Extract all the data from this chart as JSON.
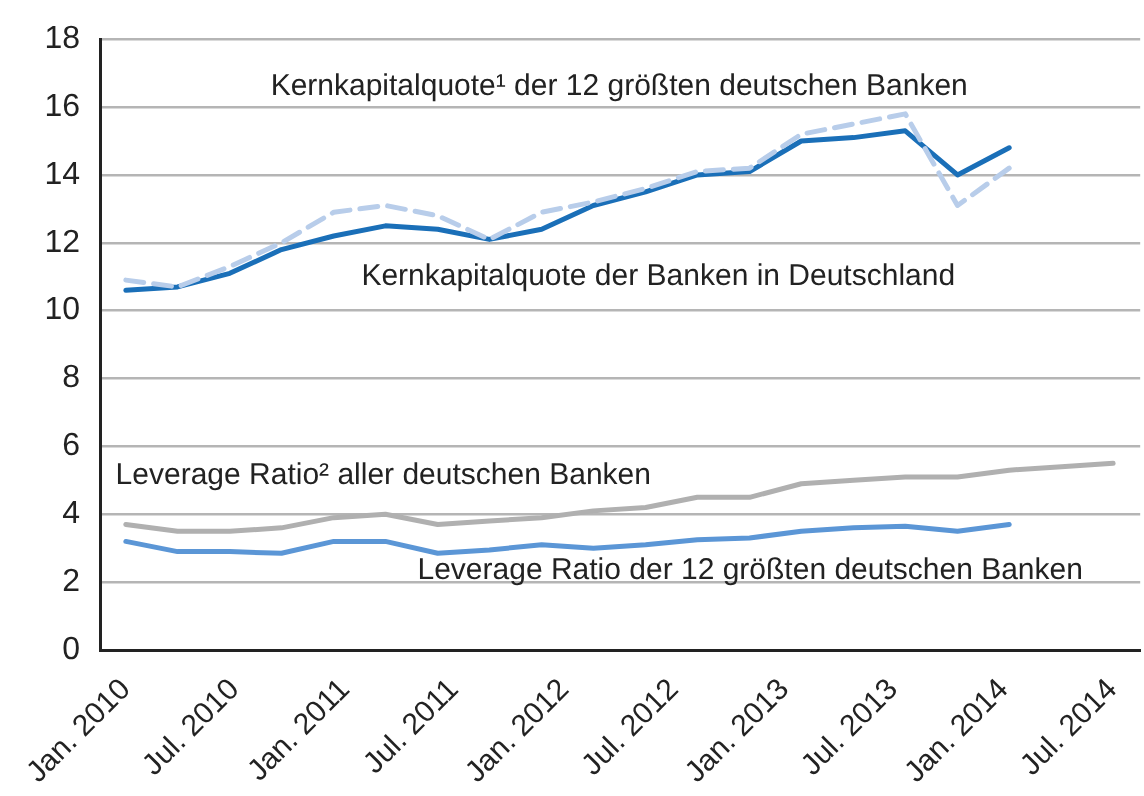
{
  "chart_data": {
    "type": "line",
    "xlim": [
      "2009-11-19",
      "2014-08-16"
    ],
    "xticks": [
      {
        "value": "2010-01",
        "label": "Jan. 2010"
      },
      {
        "value": "2010-07",
        "label": "Jul. 2010"
      },
      {
        "value": "2011-01",
        "label": "Jan. 2011"
      },
      {
        "value": "2011-07",
        "label": "Jul. 2011"
      },
      {
        "value": "2012-01",
        "label": "Jan. 2012"
      },
      {
        "value": "2012-07",
        "label": "Jul. 2012"
      },
      {
        "value": "2013-01",
        "label": "Jan. 2013"
      },
      {
        "value": "2013-07",
        "label": "Jul. 2013"
      },
      {
        "value": "2014-01",
        "label": "Jan. 2014"
      },
      {
        "value": "2014-07",
        "label": "Jul. 2014"
      }
    ],
    "ylim": [
      0,
      18
    ],
    "yticks": [
      0,
      2,
      4,
      6,
      8,
      10,
      12,
      14,
      16,
      18
    ],
    "grid": "y",
    "legend": false,
    "marker": "none",
    "x": [
      "2010-01-01",
      "2010-03-28",
      "2010-06-23",
      "2010-09-17",
      "2010-12-13",
      "2011-03-09",
      "2011-06-04",
      "2011-08-29",
      "2011-11-24",
      "2012-02-18",
      "2012-05-15",
      "2012-08-09",
      "2012-11-04",
      "2013-01-29",
      "2013-04-26",
      "2013-07-21",
      "2013-10-16",
      "2014-01-10",
      "2014-04-07",
      "2014-07-02"
    ],
    "series": [
      {
        "name": "Kernkapitalquote¹ der 12 größten deutschen Banken",
        "color": "#b8cdea",
        "line_style": "dashed",
        "values": [
          10.9,
          10.7,
          11.3,
          12.0,
          12.9,
          13.1,
          12.8,
          12.1,
          12.9,
          13.2,
          13.6,
          14.1,
          14.2,
          15.2,
          15.5,
          15.8,
          13.1,
          14.2,
          null,
          null
        ]
      },
      {
        "name": "Kernkapitalquote der Banken in Deutschland",
        "color": "#1a6fb8",
        "line_style": "solid",
        "values": [
          10.6,
          10.7,
          11.1,
          11.8,
          12.2,
          12.5,
          12.4,
          12.1,
          12.4,
          13.1,
          13.5,
          14.0,
          14.1,
          15.0,
          15.1,
          15.3,
          14.0,
          14.8,
          null,
          null
        ]
      },
      {
        "name": "Leverage Ratio² aller deutschen Banken",
        "color": "#b0b0b0",
        "line_style": "solid",
        "values": [
          3.7,
          3.5,
          3.5,
          3.6,
          3.9,
          4.0,
          3.7,
          3.8,
          3.9,
          4.1,
          4.2,
          4.5,
          4.5,
          4.9,
          5.0,
          5.1,
          5.1,
          5.3,
          5.4,
          5.5
        ]
      },
      {
        "name": "Leverage Ratio der 12 größten deutschen Banken",
        "color": "#5b96d6",
        "line_style": "solid",
        "values": [
          3.2,
          2.9,
          2.9,
          2.85,
          3.2,
          3.2,
          2.85,
          2.95,
          3.1,
          3.0,
          3.1,
          3.25,
          3.3,
          3.5,
          3.6,
          3.65,
          3.5,
          3.7,
          null,
          null
        ]
      }
    ]
  }
}
